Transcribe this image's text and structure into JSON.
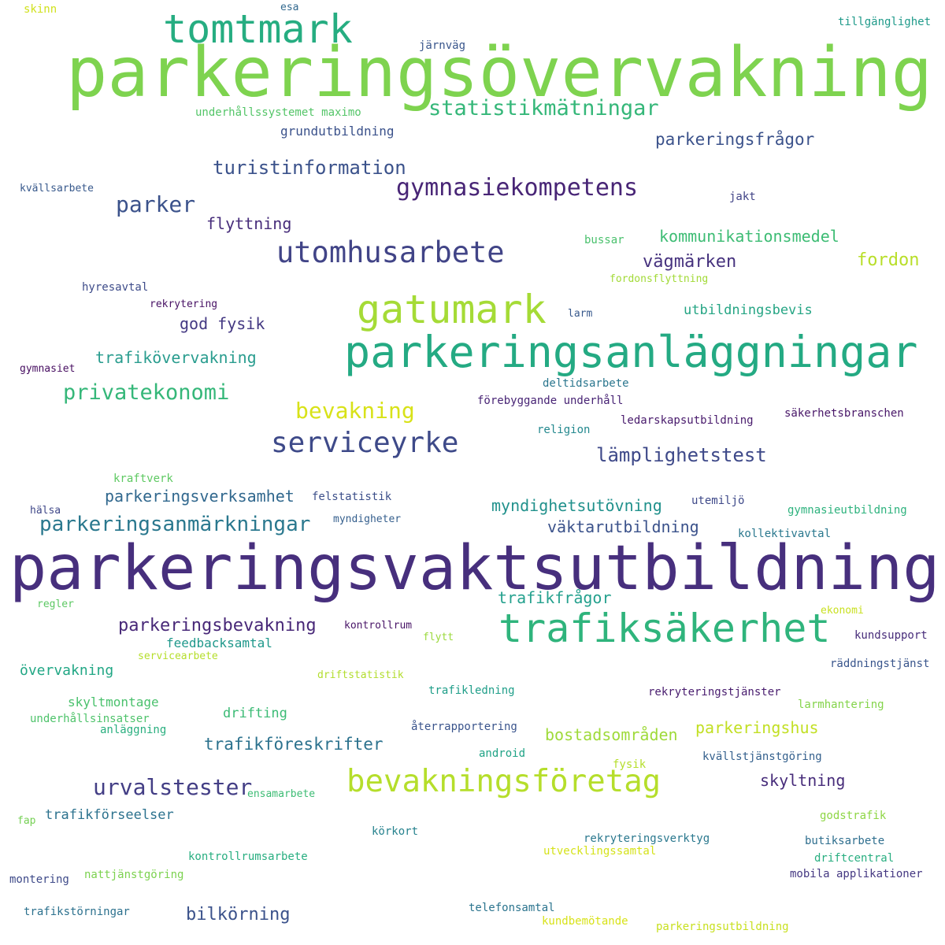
{
  "words": [
    {
      "text": "parkeringsövervakning",
      "color": "#7ed34f"
    },
    {
      "text": "parkeringsvaktsutbildning",
      "color": "#472f7d"
    },
    {
      "text": "parkeringsanläggningar",
      "color": "#24aa83"
    },
    {
      "text": "trafiksäkerhet",
      "color": "#2fb47c"
    },
    {
      "text": "tomtmark",
      "color": "#26ad81"
    },
    {
      "text": "gatumark",
      "color": "#a5db36"
    },
    {
      "text": "bevakningsföretag",
      "color": "#b5de2b"
    },
    {
      "text": "utomhusarbete",
      "color": "#414487"
    },
    {
      "text": "serviceyrke",
      "color": "#3e4a89"
    },
    {
      "text": "statistikmätningar",
      "color": "#35b779"
    },
    {
      "text": "gymnasiekompetens",
      "color": "#482576"
    },
    {
      "text": "turistinformation",
      "color": "#3b528b"
    },
    {
      "text": "parkeringsanmärkningar",
      "color": "#2a788e"
    },
    {
      "text": "privatekonomi",
      "color": "#35b779"
    },
    {
      "text": "urvalstester",
      "color": "#433e85"
    },
    {
      "text": "parker",
      "color": "#3b528b"
    },
    {
      "text": "bevakning",
      "color": "#d8e219"
    },
    {
      "text": "lämplighetstest",
      "color": "#3e4989"
    },
    {
      "text": "parkeringsfrågor",
      "color": "#3b528b"
    },
    {
      "text": "parkeringsbevakning",
      "color": "#482878"
    },
    {
      "text": "trafikföreskrifter",
      "color": "#2c728e"
    },
    {
      "text": "parkeringsverksamhet",
      "color": "#31688e"
    },
    {
      "text": "trafikövervakning",
      "color": "#2a9d8f"
    },
    {
      "text": "myndighetsutövning",
      "color": "#21918c"
    },
    {
      "text": "väktarutbildning",
      "color": "#3b528b"
    },
    {
      "text": "vägmärken",
      "color": "#46327e"
    },
    {
      "text": "kommunikationsmedel",
      "color": "#3dbc74"
    },
    {
      "text": "flyttning",
      "color": "#472d7b"
    },
    {
      "text": "god fysik",
      "color": "#443983"
    },
    {
      "text": "fordon",
      "color": "#b8de29"
    },
    {
      "text": "bilkörning",
      "color": "#3b528b"
    },
    {
      "text": "skyltning",
      "color": "#472c7a"
    },
    {
      "text": "bostadsområden",
      "color": "#9fda3a"
    },
    {
      "text": "parkeringshus",
      "color": "#c2df23"
    },
    {
      "text": "trafikfrågor",
      "color": "#25a18e"
    },
    {
      "text": "grundutbildning",
      "color": "#3b528b"
    },
    {
      "text": "utbildningsbevis",
      "color": "#25a584"
    },
    {
      "text": "feedbacksamtal",
      "color": "#1f988b"
    },
    {
      "text": "övervakning",
      "color": "#22a785"
    },
    {
      "text": "skyltmontage",
      "color": "#4ac16d"
    },
    {
      "text": "drifting",
      "color": "#3bbb75"
    },
    {
      "text": "trafikförseelser",
      "color": "#2c728e"
    },
    {
      "text": "kontrollrumsarbete",
      "color": "#28ae80"
    },
    {
      "text": "underhållssystemet maximo",
      "color": "#54c568"
    },
    {
      "text": "tillgänglighet",
      "color": "#1f9a8a"
    },
    {
      "text": "järnväg",
      "color": "#39568c"
    },
    {
      "text": "esa",
      "color": "#31688e"
    },
    {
      "text": "skinn",
      "color": "#d0e11c"
    },
    {
      "text": "kvällsarbete",
      "color": "#38598c"
    },
    {
      "text": "jakt",
      "color": "#414487"
    },
    {
      "text": "bussar",
      "color": "#4ac16d"
    },
    {
      "text": "fordonsflyttning",
      "color": "#a2da37"
    },
    {
      "text": "hyresavtal",
      "color": "#3e4c8a"
    },
    {
      "text": "rekrytering",
      "color": "#471164"
    },
    {
      "text": "larm",
      "color": "#38598c"
    },
    {
      "text": "gymnasiet",
      "color": "#470e61"
    },
    {
      "text": "deltidsarbete",
      "color": "#2a768e"
    },
    {
      "text": "förebyggande underhåll",
      "color": "#482475"
    },
    {
      "text": "säkerhetsbranschen",
      "color": "#481668"
    },
    {
      "text": "ledarskapsutbildning",
      "color": "#481a6c"
    },
    {
      "text": "religion",
      "color": "#23888e"
    },
    {
      "text": "kraftverk",
      "color": "#5ec962"
    },
    {
      "text": "hälsa",
      "color": "#3f4788"
    },
    {
      "text": "felstatistik",
      "color": "#3c4f8a"
    },
    {
      "text": "myndigheter",
      "color": "#355f8d"
    },
    {
      "text": "utemiljö",
      "color": "#3e4989"
    },
    {
      "text": "gymnasieutbildning",
      "color": "#2db27d"
    },
    {
      "text": "kollektivavtal",
      "color": "#2a788e"
    },
    {
      "text": "regler",
      "color": "#5cc863"
    },
    {
      "text": "kontrollrum",
      "color": "#481467"
    },
    {
      "text": "ekonomi",
      "color": "#c8e020"
    },
    {
      "text": "flytt",
      "color": "#9bd93c"
    },
    {
      "text": "kundsupport",
      "color": "#472c7a"
    },
    {
      "text": "servicearbete",
      "color": "#b5de2b"
    },
    {
      "text": "räddningstjänst",
      "color": "#39558c"
    },
    {
      "text": "driftstatistik",
      "color": "#b2dd2d"
    },
    {
      "text": "trafikledning",
      "color": "#1f9e89"
    },
    {
      "text": "rekryteringstjänster",
      "color": "#481c6e"
    },
    {
      "text": "larmhantering",
      "color": "#84d44b"
    },
    {
      "text": "underhållsinsatser",
      "color": "#4ec36b"
    },
    {
      "text": "anläggning",
      "color": "#29af7f"
    },
    {
      "text": "återrapportering",
      "color": "#3a548c"
    },
    {
      "text": "android",
      "color": "#20a386"
    },
    {
      "text": "fysik",
      "color": "#b5de2b"
    },
    {
      "text": "kvällstjänstgöring",
      "color": "#34608d"
    },
    {
      "text": "ensamarbete",
      "color": "#3dbc74"
    },
    {
      "text": "godstrafik",
      "color": "#8ed645"
    },
    {
      "text": "fap",
      "color": "#75d054"
    },
    {
      "text": "körkort",
      "color": "#26828e"
    },
    {
      "text": "rekryteringsverktyg",
      "color": "#2a788e"
    },
    {
      "text": "utvecklingssamtal",
      "color": "#d5e21a"
    },
    {
      "text": "butiksarbete",
      "color": "#2e6e8e"
    },
    {
      "text": "driftcentral",
      "color": "#28ae80"
    },
    {
      "text": "montering",
      "color": "#3e4a89"
    },
    {
      "text": "nattjänstgöring",
      "color": "#7cd250"
    },
    {
      "text": "mobila applikationer",
      "color": "#453882"
    },
    {
      "text": "trafikstörningar",
      "color": "#2c718e"
    },
    {
      "text": "telefonsamtal",
      "color": "#2b748e"
    },
    {
      "text": "kundbemötande",
      "color": "#d8e219"
    },
    {
      "text": "parkeringsutbildning",
      "color": "#c8e020"
    }
  ]
}
